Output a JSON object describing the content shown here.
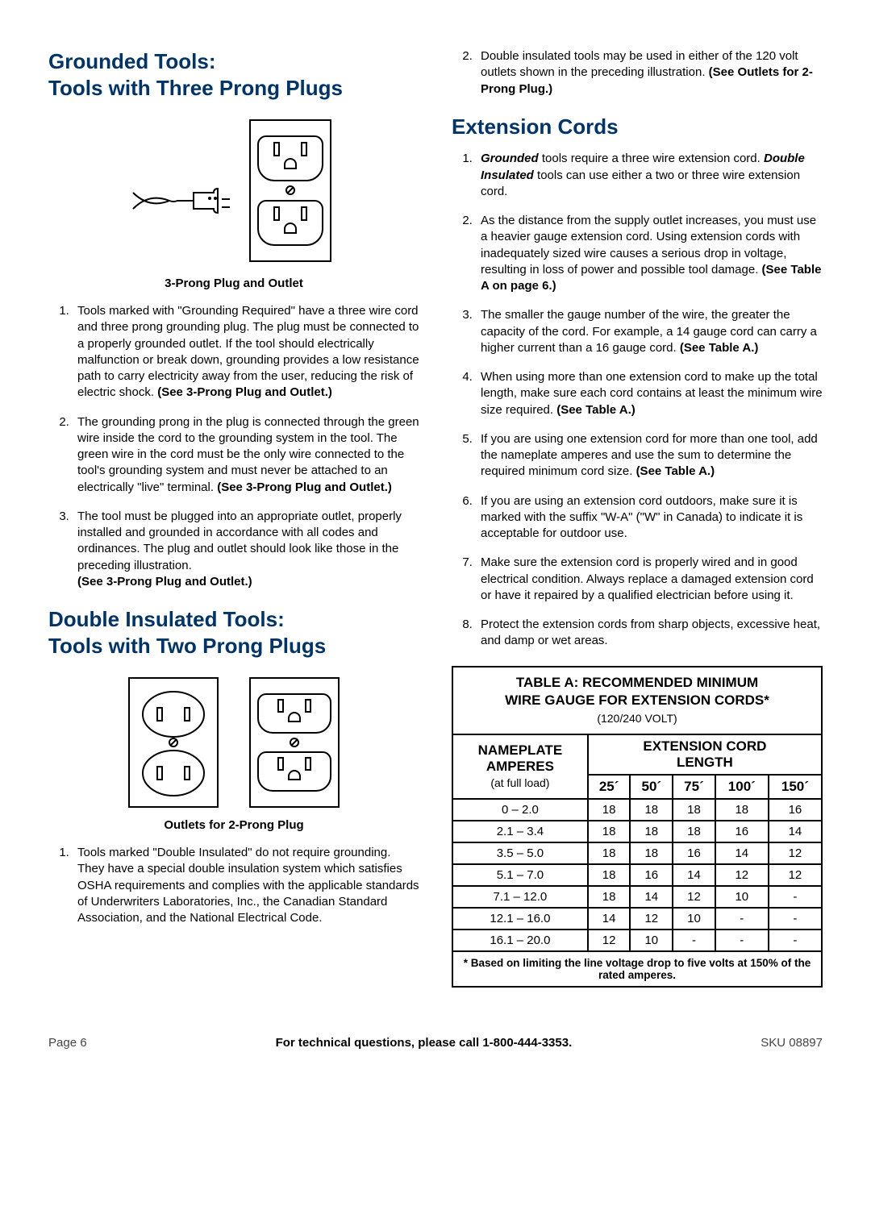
{
  "left": {
    "h1": "Grounded Tools:\nTools with Three Prong Plugs",
    "fig1_caption": "3-Prong Plug and Outlet",
    "list1": [
      "Tools marked with \"Grounding Required\" have a three wire cord and three prong grounding plug.  The plug must be connected to a properly grounded outlet.  If the tool should electrically malfunction or break down, grounding provides a low resistance path to carry electricity away from the user, reducing the risk of electric shock.  ",
      "The grounding prong in the plug is connected through the green wire inside the cord to the grounding system in the tool.  The green wire in the cord must be the only wire connected to the tool's grounding system and must never be attached to an electrically \"live\" terminal.  ",
      "The tool must be plugged into an appropriate outlet, properly installed and grounded in accordance with all codes and ordinances.  The plug and outlet should look like those in the preceding illustration.\n"
    ],
    "list1_bold": [
      "(See 3-Prong Plug and Outlet.)",
      "(See 3-Prong Plug and Outlet.)",
      "(See 3-Prong Plug and Outlet.)"
    ],
    "h2": "Double Insulated Tools:\nTools with Two Prong Plugs",
    "fig2_caption": "Outlets for 2-Prong Plug",
    "list2_1": "Tools marked \"Double Insulated\" do not require grounding.  They have a special double insulation system which satisfies OSHA requirements and complies with the applicable standards of Underwriters Laboratories, Inc., the Canadian Standard Association, and the National Electrical Code."
  },
  "right": {
    "list_top_2": "Double insulated tools may be used in either of the 120 volt outlets shown in the preceding illustration.  ",
    "list_top_2_bold": "(See Outlets for 2-Prong Plug.)",
    "h3": "Extension Cords",
    "ec": [
      {
        "pre": "",
        "bi1": "Grounded",
        "mid1": " tools require a three wire extension cord.  ",
        "bi2": "Double Insulated",
        "mid2": " tools can use either a two or three wire extension cord.",
        "bold": ""
      },
      {
        "pre": "As the distance from the supply outlet increases, you must use a heavier gauge extension cord.  Using extension cords with inadequately sized wire causes a serious drop in voltage, resulting in loss of power and possible tool damage.  ",
        "bold": "(See Table A on page 6.)"
      },
      {
        "pre": "The smaller the gauge number of the wire, the greater the capacity of the cord.  For example, a 14 gauge cord can carry a higher current than a 16 gauge cord.  ",
        "bold": "(See Table A.)"
      },
      {
        "pre": "When using more than one extension cord to make up the total length, make sure each cord contains at least the minimum wire size required.  ",
        "bold": "(See Table A.)"
      },
      {
        "pre": "If you are using one extension cord for more than one tool, add the nameplate amperes and use the sum to determine the required minimum cord size.  ",
        "bold": "(See Table A.)"
      },
      {
        "pre": "If you are using an extension cord outdoors, make sure it is marked with the suffix \"W-A\" (\"W\" in Canada) to indicate it is acceptable for outdoor use.",
        "bold": ""
      },
      {
        "pre": "Make sure the extension cord is properly wired and in good electrical condition.  Always replace a damaged extension cord or have it repaired by a qualified electrician before using it.",
        "bold": ""
      },
      {
        "pre": "Protect the extension cords from sharp objects, excessive heat, and damp or wet areas.",
        "bold": ""
      }
    ],
    "table": {
      "title_l1": "TABLE A:  RECOMMENDED MINIMUM",
      "title_l2": "WIRE GAUGE FOR EXTENSION CORDS*",
      "title_l3": "(120/240 VOLT)",
      "nameplate_l1": "NAMEPLATE",
      "nameplate_l2": "AMPERES",
      "nameplate_l3": "(at full load)",
      "ext_l1": "EXTENSION CORD",
      "ext_l2": "LENGTH",
      "lengths": [
        "25´",
        "50´",
        "75´",
        "100´",
        "150´"
      ],
      "rows": [
        {
          "r": "0 – 2.0",
          "v": [
            "18",
            "18",
            "18",
            "18",
            "16"
          ]
        },
        {
          "r": "2.1 – 3.4",
          "v": [
            "18",
            "18",
            "18",
            "16",
            "14"
          ]
        },
        {
          "r": "3.5 – 5.0",
          "v": [
            "18",
            "18",
            "16",
            "14",
            "12"
          ]
        },
        {
          "r": "5.1 – 7.0",
          "v": [
            "18",
            "16",
            "14",
            "12",
            "12"
          ]
        },
        {
          "r": "7.1 – 12.0",
          "v": [
            "18",
            "14",
            "12",
            "10",
            "-"
          ]
        },
        {
          "r": "12.1 – 16.0",
          "v": [
            "14",
            "12",
            "10",
            "-",
            "-"
          ]
        },
        {
          "r": "16.1 – 20.0",
          "v": [
            "12",
            "10",
            "-",
            "-",
            "-"
          ]
        }
      ],
      "footnote": "* Based on limiting the line voltage drop to five volts at 150% of the rated amperes."
    }
  },
  "footer": {
    "left": "Page 6",
    "center": "For technical questions, please call 1-800-444-3353.",
    "right": "SKU 08897"
  }
}
